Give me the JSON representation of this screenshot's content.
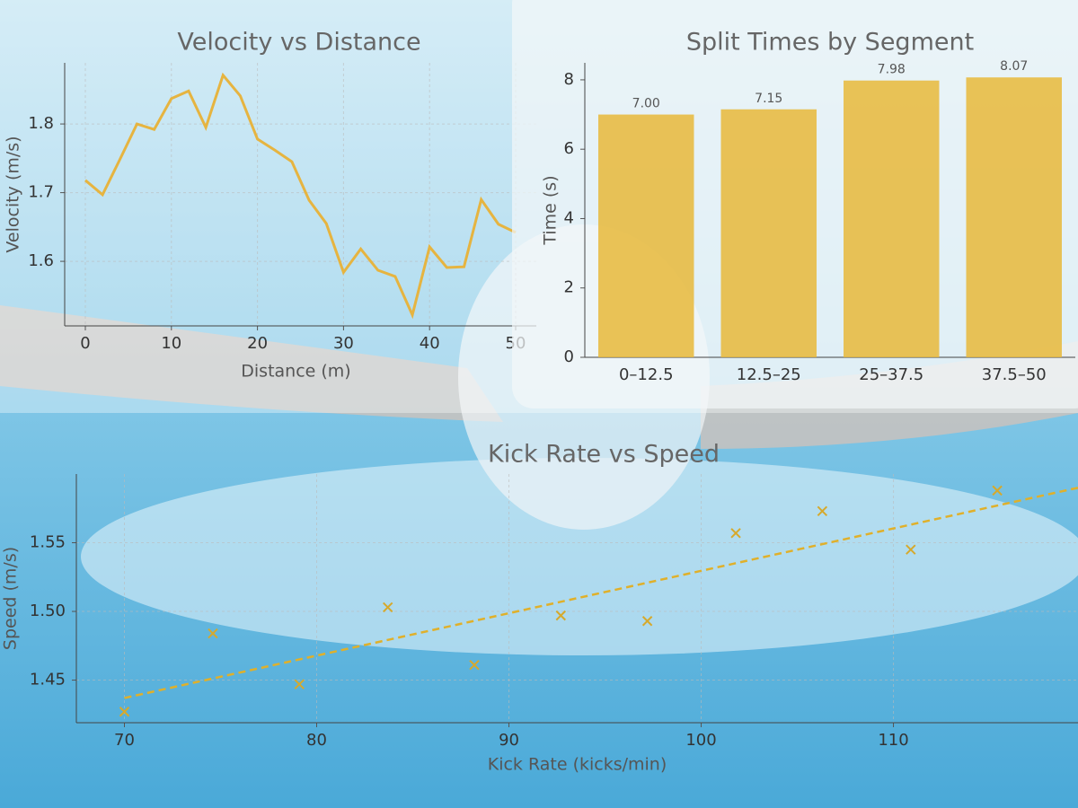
{
  "chart_data": [
    {
      "type": "line",
      "title": "Velocity vs Distance",
      "xlabel": "Distance (m)",
      "ylabel": "Velocity (m/s)",
      "x": [
        0,
        2,
        4,
        6,
        8,
        10,
        12,
        14,
        16,
        18,
        20,
        22,
        24,
        26,
        28,
        30,
        32,
        34,
        36,
        38,
        40,
        42,
        44,
        46,
        48,
        50
      ],
      "values": [
        1.718,
        1.697,
        1.748,
        1.8,
        1.792,
        1.837,
        1.848,
        1.795,
        1.871,
        1.841,
        1.778,
        1.762,
        1.745,
        1.689,
        1.655,
        1.584,
        1.618,
        1.587,
        1.578,
        1.522,
        1.621,
        1.591,
        1.592,
        1.69,
        1.654,
        1.642
      ],
      "color": "#e6b440",
      "xlim": [
        -2.4,
        52.4
      ],
      "ylim": [
        1.506,
        1.889
      ],
      "xticks": [
        0,
        10,
        20,
        30,
        40,
        50
      ],
      "yticks": [
        1.6,
        1.7,
        1.8
      ],
      "grid": true
    },
    {
      "type": "bar",
      "title": "Split Times by Segment",
      "ylabel": "Time (s)",
      "categories": [
        "0–12.5",
        "12.5–25",
        "25–37.5",
        "37.5–50"
      ],
      "values": [
        7.0,
        7.15,
        7.98,
        8.07
      ],
      "value_labels": [
        "7.00",
        "7.15",
        "7.98",
        "8.07"
      ],
      "color": "#e8b83a",
      "ylim": [
        0,
        8.49
      ],
      "yticks": [
        0,
        2,
        4,
        6,
        8
      ],
      "grid": false
    },
    {
      "type": "scatter",
      "title": "Kick Rate vs Speed",
      "xlabel": "Kick Rate (kicks/min)",
      "ylabel": "Speed (m/s)",
      "series": [
        {
          "marker": "x",
          "color": "#d6a92c",
          "x": [
            70,
            74.6,
            79.1,
            83.7,
            88.2,
            92.7,
            97.2,
            101.8,
            106.3,
            110.9,
            115.4
          ],
          "values": [
            1.427,
            1.484,
            1.447,
            1.503,
            1.461,
            1.497,
            1.493,
            1.557,
            1.573,
            1.545,
            1.588
          ]
        },
        {
          "line": "dashed",
          "color": "#e0b02a",
          "x": [
            70,
            119.6
          ],
          "values": [
            1.437,
            1.59
          ]
        }
      ],
      "xlim": [
        67.5,
        119.6
      ],
      "ylim": [
        1.419,
        1.6
      ],
      "xticks": [
        70,
        80,
        90,
        100,
        110
      ],
      "yticks": [
        1.45,
        {
          "value": 1.5,
          "label": "1.50"
        },
        1.55
      ],
      "grid": true
    }
  ]
}
